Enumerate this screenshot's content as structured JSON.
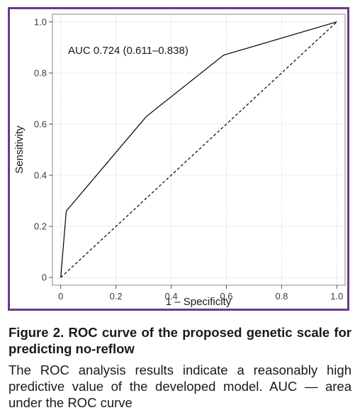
{
  "chart_data": {
    "type": "line",
    "title": "",
    "xlabel": "1 – Specificity",
    "ylabel": "Sensitivity",
    "xlim": [
      -0.03,
      1.03
    ],
    "ylim": [
      -0.03,
      1.03
    ],
    "x_ticks": [
      0,
      0.2,
      0.4,
      0.6,
      0.8,
      1.0
    ],
    "x_tick_labels": [
      "0",
      "0.2",
      "0.4",
      "0.6",
      "0.8",
      "1.0"
    ],
    "y_ticks": [
      0,
      0.2,
      0.4,
      0.6,
      0.8,
      1.0
    ],
    "y_tick_labels": [
      "0",
      "0.2",
      "0.4",
      "0.6",
      "0.8",
      "1.0"
    ],
    "grid": true,
    "series": [
      {
        "style": "solid",
        "x": [
          0,
          0.02,
          0.31,
          0.59,
          1.0
        ],
        "y": [
          0,
          0.26,
          0.63,
          0.87,
          1.0
        ]
      },
      {
        "style": "dashed",
        "x": [
          0,
          1.0
        ],
        "y": [
          0,
          1.0
        ]
      }
    ],
    "annotations": [
      {
        "text": "AUC 0.724 (0.611–0.838)"
      }
    ],
    "colors": {
      "frame": "#6b3a86",
      "line": "#000000",
      "grid": "#d9d9d9"
    }
  },
  "caption": {
    "title": "Figure 2. ROC curve of the proposed genetic scale for predicting no-reflow",
    "body": "The ROC analysis results indicate a reasonably high predictive value of the developed model. AUC — area under the ROC curve"
  }
}
